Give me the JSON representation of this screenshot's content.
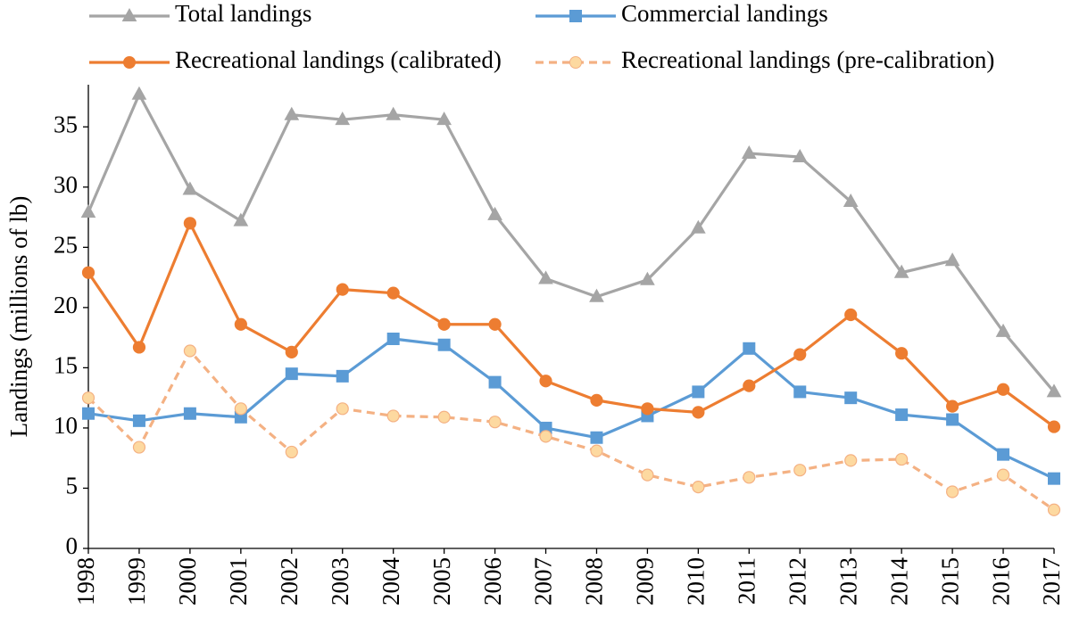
{
  "chart_data": {
    "type": "line",
    "y_label": "Landings (millions of lb)",
    "categories": [
      "1998",
      "1999",
      "2000",
      "2001",
      "2002",
      "2003",
      "2004",
      "2005",
      "2006",
      "2007",
      "2008",
      "2009",
      "2010",
      "2011",
      "2012",
      "2013",
      "2014",
      "2015",
      "2016",
      "2017"
    ],
    "series": [
      {
        "name": "Total landings",
        "color": "#a5a5a5",
        "marker": "triangle",
        "dash": false,
        "values": [
          27.9,
          37.7,
          29.8,
          27.2,
          36.0,
          35.6,
          36.0,
          35.6,
          27.7,
          22.4,
          20.9,
          22.3,
          26.6,
          32.8,
          32.5,
          28.8,
          22.9,
          23.9,
          18.0,
          13.0
        ]
      },
      {
        "name": "Commercial landings",
        "color": "#5b9bd5",
        "marker": "square",
        "dash": false,
        "values": [
          11.2,
          10.6,
          11.2,
          10.9,
          14.5,
          14.3,
          17.4,
          16.9,
          13.8,
          10.0,
          9.2,
          11.0,
          13.0,
          16.6,
          13.0,
          12.5,
          11.1,
          10.7,
          7.8,
          5.8
        ]
      },
      {
        "name": "Recreational landings (calibrated)",
        "color": "#ed7d31",
        "marker": "circle",
        "dash": false,
        "values": [
          22.9,
          16.7,
          27.0,
          18.6,
          16.3,
          21.5,
          21.2,
          18.6,
          18.6,
          13.9,
          12.3,
          11.6,
          11.3,
          13.5,
          16.1,
          19.4,
          16.2,
          11.8,
          13.2,
          10.1
        ]
      },
      {
        "name": "Recreational landings (pre-calibration)",
        "color": "#f4b183",
        "marker": "circle",
        "marker_fill": "#fdd9a0",
        "dash": true,
        "values": [
          12.5,
          8.4,
          16.4,
          11.6,
          8.0,
          11.6,
          11.0,
          10.9,
          10.5,
          9.3,
          8.1,
          6.1,
          5.1,
          5.9,
          6.5,
          7.3,
          7.4,
          4.7,
          6.1,
          3.2
        ]
      }
    ],
    "ylim": [
      0,
      38.5
    ],
    "yticks": [
      0,
      5,
      10,
      15,
      20,
      25,
      30,
      35
    ],
    "grid": false
  }
}
